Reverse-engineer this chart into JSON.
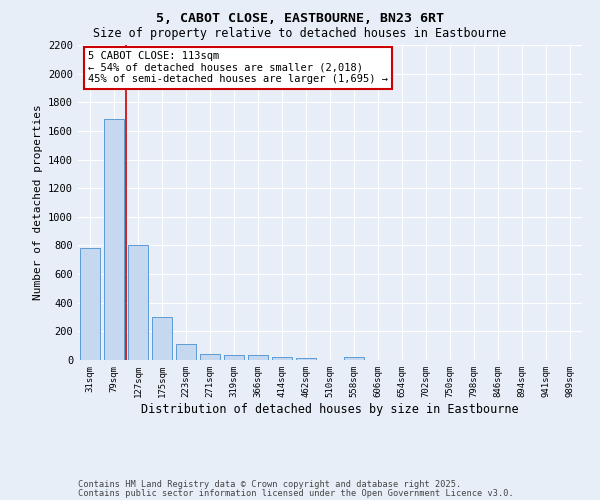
{
  "title1": "5, CABOT CLOSE, EASTBOURNE, BN23 6RT",
  "title2": "Size of property relative to detached houses in Eastbourne",
  "xlabel": "Distribution of detached houses by size in Eastbourne",
  "ylabel": "Number of detached properties",
  "categories": [
    "31sqm",
    "79sqm",
    "127sqm",
    "175sqm",
    "223sqm",
    "271sqm",
    "319sqm",
    "366sqm",
    "414sqm",
    "462sqm",
    "510sqm",
    "558sqm",
    "606sqm",
    "654sqm",
    "702sqm",
    "750sqm",
    "798sqm",
    "846sqm",
    "894sqm",
    "941sqm",
    "989sqm"
  ],
  "values": [
    780,
    1680,
    800,
    300,
    115,
    40,
    35,
    35,
    20,
    15,
    0,
    20,
    0,
    0,
    0,
    0,
    0,
    0,
    0,
    0,
    0
  ],
  "bar_color": "#c5d8f0",
  "bar_edge_color": "#5b9bd5",
  "red_line_x": 1.5,
  "annotation_line1": "5 CABOT CLOSE: 113sqm",
  "annotation_line2": "← 54% of detached houses are smaller (2,018)",
  "annotation_line3": "45% of semi-detached houses are larger (1,695) →",
  "annotation_box_color": "#ffffff",
  "annotation_box_edge": "#cc0000",
  "ylim": [
    0,
    2200
  ],
  "yticks": [
    0,
    200,
    400,
    600,
    800,
    1000,
    1200,
    1400,
    1600,
    1800,
    2000,
    2200
  ],
  "footer1": "Contains HM Land Registry data © Crown copyright and database right 2025.",
  "footer2": "Contains public sector information licensed under the Open Government Licence v3.0.",
  "bg_color": "#e8eef8",
  "plot_bg_color": "#e8eef8",
  "grid_color": "#ffffff",
  "title1_fontsize": 9.5,
  "title2_fontsize": 8.5
}
